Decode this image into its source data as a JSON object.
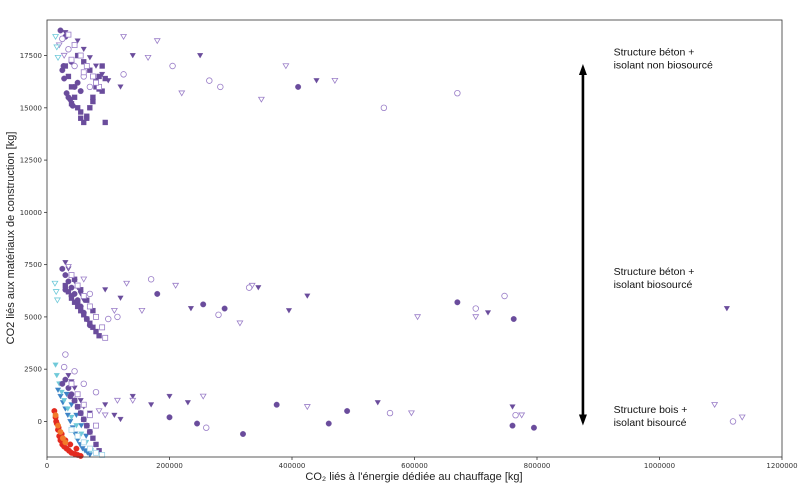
{
  "chart_data": {
    "type": "scatter",
    "title": "",
    "xlabel": "CO₂ liés à l'énergie dédiée au chauffage [kg]",
    "ylabel": "CO2 liés aux matériaux de construction [kg]",
    "xlim": [
      0,
      1200000
    ],
    "ylim": [
      -1700,
      19200
    ],
    "x_ticks": [
      0,
      200000,
      400000,
      600000,
      800000,
      1000000,
      1200000
    ],
    "x_tick_labels": [
      "0",
      "200000",
      "400000",
      "600000",
      "800000",
      "1000000",
      "1200000"
    ],
    "y_ticks": [
      0,
      2500,
      5000,
      7500,
      10000,
      12500,
      15000,
      17500
    ],
    "y_tick_labels": [
      "0",
      "2500",
      "5000",
      "7500",
      "10000",
      "12500",
      "15000",
      "17500"
    ],
    "grid": false,
    "legend": "none",
    "colors": {
      "purple": "#6a4c9c",
      "light_purple": "#9a7ec8",
      "blue": "#3d83c6",
      "cyan": "#6fc9d9",
      "light_blue": "#9fd3e8",
      "red": "#e32a1f",
      "orange": "#f27a2a"
    },
    "annotations": [
      {
        "lines": [
          "Structure béton +",
          "isolant non biosourcé"
        ],
        "x": 925000,
        "y": 17500
      },
      {
        "lines": [
          "Structure béton +",
          "isolant  biosourcé"
        ],
        "x": 925000,
        "y": 7000
      },
      {
        "lines": [
          "Structure bois +",
          "isolant bisourcé"
        ],
        "x": 925000,
        "y": 400
      }
    ],
    "arrow": {
      "x": 875000,
      "y_from": 17000,
      "y_to": -100
    },
    "series": [
      {
        "marker": "circle",
        "filled": true,
        "color": "#6a4c9c",
        "x": [
          22000,
          30000,
          35000,
          40000,
          25000,
          28000,
          45000,
          32000,
          38000,
          42000,
          27000,
          50000,
          55000,
          35000,
          410000
        ],
        "y": [
          18700,
          18400,
          17800,
          17200,
          16800,
          16400,
          16000,
          15700,
          15400,
          15100,
          17000,
          16200,
          15800,
          15500,
          16000
        ]
      },
      {
        "marker": "square",
        "filled": true,
        "color": "#6a4c9c",
        "x": [
          30000,
          35000,
          40000,
          45000,
          50000,
          55000,
          60000,
          65000,
          70000,
          75000,
          80000,
          85000,
          90000,
          95000,
          50000,
          60000,
          70000,
          80000,
          90000,
          40000,
          55000,
          65000,
          75000,
          85000,
          95000
        ],
        "y": [
          17000,
          16500,
          16000,
          15500,
          15000,
          14500,
          14300,
          14500,
          15000,
          15500,
          16000,
          16500,
          17000,
          14300,
          17500,
          17200,
          16800,
          16300,
          15800,
          15200,
          14800,
          14600,
          15300,
          15900,
          16400
        ]
      },
      {
        "marker": "triangle-down",
        "filled": true,
        "color": "#6a4c9c",
        "x": [
          50000,
          60000,
          70000,
          80000,
          90000,
          100000,
          120000,
          140000,
          250000,
          440000,
          30000,
          45000
        ],
        "y": [
          18200,
          17800,
          17400,
          17000,
          16600,
          16300,
          16000,
          17500,
          17500,
          16300,
          18600,
          18000
        ]
      },
      {
        "marker": "triangle-down",
        "filled": false,
        "color": "#9a7ec8",
        "x": [
          20000,
          28000,
          125000,
          165000,
          180000,
          220000,
          350000,
          390000,
          470000
        ],
        "y": [
          18000,
          17500,
          18400,
          17400,
          18200,
          15700,
          15400,
          17000,
          16300
        ]
      },
      {
        "marker": "circle",
        "filled": false,
        "color": "#9a7ec8",
        "x": [
          25000,
          35000,
          45000,
          60000,
          70000,
          125000,
          205000,
          265000,
          283000,
          550000,
          670000
        ],
        "y": [
          18300,
          17800,
          17000,
          16500,
          16000,
          16600,
          17000,
          16300,
          16000,
          15000,
          15700
        ]
      },
      {
        "marker": "square",
        "filled": false,
        "color": "#9a7ec8",
        "x": [
          35000,
          45000,
          55000,
          65000,
          75000,
          85000,
          40000,
          60000,
          80000
        ],
        "y": [
          18500,
          18000,
          17500,
          17000,
          16500,
          16000,
          17300,
          16700,
          16200
        ]
      },
      {
        "marker": "triangle-down",
        "filled": false,
        "color": "#6fc9d9",
        "x": [
          14000,
          16000,
          18000
        ],
        "y": [
          18400,
          17900,
          17400
        ]
      },
      {
        "marker": "circle",
        "filled": true,
        "color": "#6a4c9c",
        "x": [
          25000,
          30000,
          35000,
          40000,
          45000,
          50000,
          55000,
          60000,
          65000,
          70000,
          180000,
          255000,
          290000,
          670000,
          762000,
          30000,
          40000,
          50000
        ],
        "y": [
          7300,
          7000,
          6700,
          6400,
          6100,
          5800,
          5500,
          5200,
          4900,
          4600,
          6100,
          5600,
          5400,
          5700,
          4900,
          6300,
          6000,
          5700
        ]
      },
      {
        "marker": "square",
        "filled": true,
        "color": "#6a4c9c",
        "x": [
          30000,
          35000,
          40000,
          45000,
          50000,
          55000,
          60000,
          65000,
          70000,
          75000,
          80000,
          85000,
          45000,
          55000,
          65000,
          75000
        ],
        "y": [
          6500,
          6200,
          5900,
          5700,
          5500,
          5300,
          5100,
          4900,
          4700,
          4500,
          4300,
          4100,
          6800,
          6300,
          5800,
          5300
        ]
      },
      {
        "marker": "triangle-down",
        "filled": true,
        "color": "#6a4c9c",
        "x": [
          30000,
          35000,
          40000,
          45000,
          50000,
          55000,
          60000,
          95000,
          120000,
          235000,
          345000,
          395000,
          425000,
          720000,
          1110000
        ],
        "y": [
          7600,
          7300,
          7000,
          6700,
          6400,
          6100,
          5800,
          6300,
          5900,
          5400,
          6400,
          5300,
          6000,
          5200,
          5400
        ]
      },
      {
        "marker": "triangle-down",
        "filled": false,
        "color": "#9a7ec8",
        "x": [
          35000,
          60000,
          110000,
          130000,
          155000,
          210000,
          315000,
          335000,
          605000,
          700000
        ],
        "y": [
          7400,
          6800,
          5300,
          6600,
          5300,
          6500,
          4700,
          6500,
          5000,
          5000
        ]
      },
      {
        "marker": "circle",
        "filled": false,
        "color": "#9a7ec8",
        "x": [
          70000,
          100000,
          115000,
          170000,
          280000,
          330000,
          700000,
          747000
        ],
        "y": [
          6100,
          4900,
          5000,
          6800,
          5100,
          6400,
          5400,
          6000
        ]
      },
      {
        "marker": "square",
        "filled": false,
        "color": "#9a7ec8",
        "x": [
          40000,
          50000,
          60000,
          70000,
          80000,
          90000,
          95000
        ],
        "y": [
          7000,
          6500,
          6000,
          5500,
          5000,
          4500,
          4000
        ]
      },
      {
        "marker": "triangle-down",
        "filled": false,
        "color": "#6fc9d9",
        "x": [
          13000,
          15000,
          17000
        ],
        "y": [
          6600,
          6200,
          5800
        ]
      },
      {
        "marker": "circle",
        "filled": true,
        "color": "#e32a1f",
        "x": [
          12000,
          14000,
          16000,
          18000,
          20000,
          22000,
          25000,
          28000,
          32000,
          36000,
          40000,
          45000,
          50000,
          55000,
          15000,
          19000,
          24000,
          30000,
          38000,
          48000
        ],
        "y": [
          500,
          200,
          -100,
          -400,
          -700,
          -900,
          -1100,
          -1200,
          -1300,
          -1400,
          -1500,
          -1550,
          -1600,
          -1650,
          0,
          -300,
          -600,
          -900,
          -1100,
          -1300
        ]
      },
      {
        "marker": "circle",
        "filled": true,
        "color": "#f27a2a",
        "x": [
          14000,
          18000,
          22000,
          26000,
          30000
        ],
        "y": [
          300,
          -200,
          -500,
          -800,
          -1000
        ]
      },
      {
        "marker": "triangle-down",
        "filled": true,
        "color": "#3d83c6",
        "x": [
          18000,
          22000,
          26000,
          30000,
          34000,
          38000,
          42000,
          46000,
          50000,
          54000,
          58000,
          62000,
          66000,
          70000,
          24000,
          32000,
          40000,
          48000,
          56000,
          64000
        ],
        "y": [
          1500,
          1200,
          900,
          600,
          300,
          0,
          -300,
          -600,
          -900,
          -1100,
          -1300,
          -1400,
          -1500,
          -1600,
          1800,
          1300,
          800,
          300,
          -200,
          -700
        ]
      },
      {
        "marker": "triangle-down",
        "filled": true,
        "color": "#6fc9d9",
        "x": [
          14000,
          16000,
          20000,
          24000,
          28000,
          34000,
          40000,
          48000,
          56000,
          64000,
          72000
        ],
        "y": [
          2700,
          2200,
          1800,
          1400,
          1000,
          600,
          200,
          -200,
          -600,
          -1000,
          -1400
        ]
      },
      {
        "marker": "circle",
        "filled": true,
        "color": "#6a4c9c",
        "x": [
          30000,
          35000,
          40000,
          45000,
          50000,
          55000,
          60000,
          65000,
          70000,
          200000,
          245000,
          320000,
          375000,
          460000,
          490000,
          760000,
          795000,
          25000,
          38000
        ],
        "y": [
          2000,
          1600,
          1300,
          1000,
          700,
          400,
          100,
          -200,
          -500,
          200,
          -100,
          -600,
          800,
          -100,
          500,
          -200,
          -300,
          1800,
          1200
        ]
      },
      {
        "marker": "square",
        "filled": true,
        "color": "#6a4c9c",
        "x": [
          45000,
          50000,
          55000,
          60000,
          65000,
          70000,
          75000,
          80000,
          85000
        ],
        "y": [
          1000,
          700,
          400,
          100,
          -200,
          -500,
          -800,
          -1100,
          -1400
        ]
      },
      {
        "marker": "triangle-down",
        "filled": true,
        "color": "#6a4c9c",
        "x": [
          35000,
          40000,
          45000,
          50000,
          55000,
          60000,
          70000,
          95000,
          110000,
          120000,
          140000,
          170000,
          200000,
          230000,
          540000,
          760000
        ],
        "y": [
          2200,
          1900,
          1600,
          1300,
          1000,
          700,
          400,
          800,
          300,
          100,
          1200,
          800,
          1200,
          900,
          900,
          700
        ]
      },
      {
        "marker": "triangle-down",
        "filled": false,
        "color": "#9a7ec8",
        "x": [
          85000,
          95000,
          115000,
          140000,
          255000,
          425000,
          595000,
          775000,
          1090000,
          1135000
        ],
        "y": [
          500,
          300,
          1000,
          1000,
          1200,
          700,
          400,
          300,
          800,
          200
        ]
      },
      {
        "marker": "circle",
        "filled": false,
        "color": "#9a7ec8",
        "x": [
          30000,
          45000,
          60000,
          80000,
          260000,
          560000,
          765000,
          1120000,
          28000
        ],
        "y": [
          3200,
          2400,
          1800,
          1400,
          -300,
          400,
          300,
          0,
          2600
        ]
      },
      {
        "marker": "square",
        "filled": false,
        "color": "#9a7ec8",
        "x": [
          40000,
          50000,
          60000,
          70000,
          80000
        ],
        "y": [
          1800,
          1300,
          800,
          300,
          -200
        ]
      },
      {
        "marker": "square",
        "filled": false,
        "color": "#9fd3e8",
        "x": [
          40000,
          50000,
          60000,
          70000,
          80000,
          90000
        ],
        "y": [
          -400,
          -700,
          -1000,
          -1300,
          -1500,
          -1600
        ]
      }
    ]
  }
}
